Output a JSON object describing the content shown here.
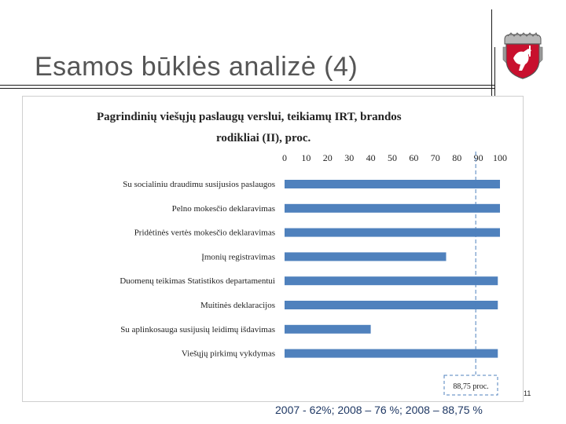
{
  "slide": {
    "title": "Esamos būklės analizė (4)",
    "page_number": "11",
    "footer_note": "2007 - 62%; 2008 – 76 %; 2008 – 88,75 %",
    "emblem_icon": "coat-of-arms-icon"
  },
  "chart_data": {
    "type": "bar",
    "orientation": "horizontal",
    "title_line1": "Pagrindinių viešųjų paslaugų verslui, teikiamų IRT, brandos",
    "title_line2": "rodikliai (II), proc.",
    "categories": [
      "Su socialiniu draudimu susijusios paslaugos",
      "Pelno mokesčio deklaravimas",
      "Pridėtinės vertės mokesčio deklaravimas",
      "Įmonių registravimas",
      "Duomenų teikimas Statistikos departamentui",
      "Muitinės deklaracijos",
      "Su aplinkosauga susijusių leidimų išdavimas",
      "Viešųjų pirkimų vykdymas"
    ],
    "values": [
      100,
      100,
      100,
      75,
      99,
      99,
      40,
      99
    ],
    "xlim": [
      0,
      100
    ],
    "x_ticks": [
      "0",
      "10",
      "20",
      "30",
      "40",
      "50",
      "60",
      "70",
      "80",
      "90",
      "100"
    ],
    "reference_line": {
      "value": 88.75,
      "label": "88,75 proc."
    },
    "bar_color": "#4f81bd",
    "reference_color": "#4f81bd",
    "grid": false
  }
}
